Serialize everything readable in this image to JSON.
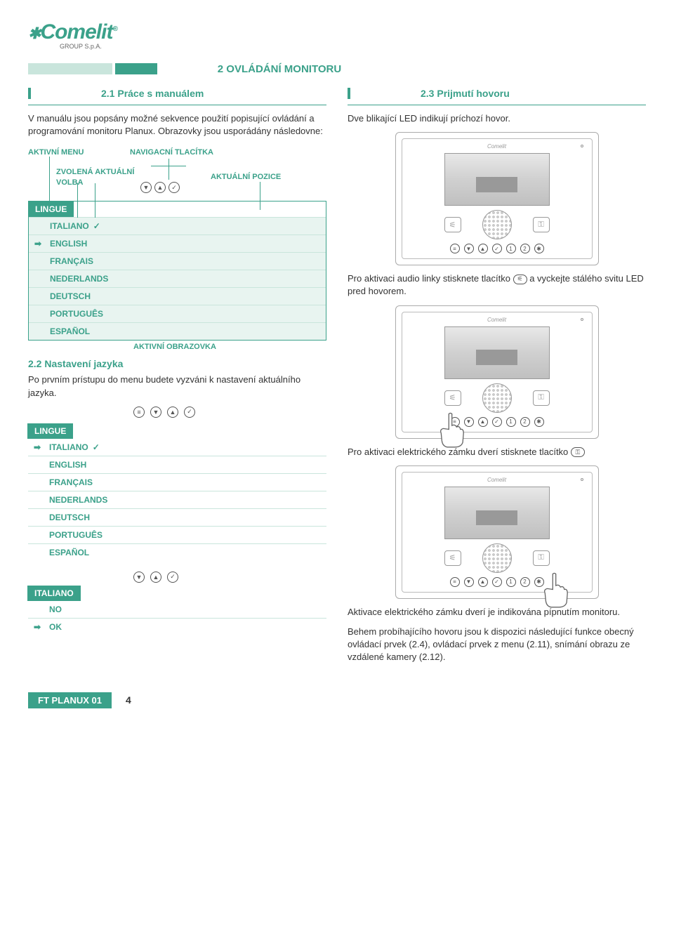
{
  "logo": {
    "brand": "Comelit",
    "sub": "GROUP S.p.A."
  },
  "section_title": "2 OVLÁDÁNÍ MONITORU",
  "colors": {
    "primary": "#3ba18a",
    "pale": "#c9e5dc",
    "item_bg": "#e8f4f0"
  },
  "left": {
    "s21": {
      "heading": "2.1 Práce s manuálem",
      "text": "V manuálu jsou popsány možné sekvence použití popisující ovládání a programování monitoru Planux. Obrazovky jsou usporádány následovne:"
    },
    "diagram_labels": {
      "active_menu": "AKTIVNÍ MENU",
      "nav_buttons": "NAVIGACNÍ TLACÍTKA",
      "current_choice_l1": "ZVOLENÁ AKTUÁLNÍ",
      "current_choice_l2": "VOLBA",
      "current_position": "AKTUÁLNÍ POZICE",
      "active_screen": "AKTIVNÍ OBRAZOVKA"
    },
    "lingue1": {
      "title": "LINGUE",
      "items": [
        "ITALIANO",
        "ENGLISH",
        "FRANÇAIS",
        "NEDERLANDS",
        "DEUTSCH",
        "PORTUGUÊS",
        "ESPAÑOL"
      ],
      "checked_index": 0,
      "selected_index": 1
    },
    "s22": {
      "heading": "2.2 Nastavení jazyka",
      "text": "Po prvním prístupu do menu budete vyzváni k nastavení aktuálního jazyka."
    },
    "lingue2": {
      "title": "LINGUE",
      "items": [
        "ITALIANO",
        "ENGLISH",
        "FRANÇAIS",
        "NEDERLANDS",
        "DEUTSCH",
        "PORTUGUÊS",
        "ESPAÑOL"
      ],
      "checked_index": 0,
      "selected_index": 0
    },
    "confirm": {
      "title": "ITALIANO",
      "no": "NO",
      "ok": "OK",
      "selected_index": 1
    }
  },
  "right": {
    "s23": {
      "heading": "2.3 Prijmutí hovoru",
      "text1": "Dve blikající LED indikují príchozí hovor."
    },
    "audio_text_a": "Pro aktivaci audio linky stisknete tlacítko",
    "audio_text_b": "a vyckejte stálého svitu LED pred hovorem.",
    "lock_text": "Pro aktivaci elektrického zámku dverí stisknete tlacítko",
    "lock_confirm": "Aktivace elektrického zámku dverí je indikována pípnutím monitoru.",
    "during_call": "Behem probíhajícího hovoru jsou k dispozici následující funkce obecný ovládací prvek (2.4), ovládací prvek z menu (2.11), snímání obrazu ze vzdálené kamery (2.12)."
  },
  "nav_icons": {
    "menu": "≡",
    "down": "▼",
    "up": "▲",
    "check": "✓",
    "one": "1",
    "two": "2",
    "spark": "✱"
  },
  "device": {
    "brand": "Comelit"
  },
  "footer": {
    "label": "FT PLANUX 01",
    "page": "4"
  }
}
